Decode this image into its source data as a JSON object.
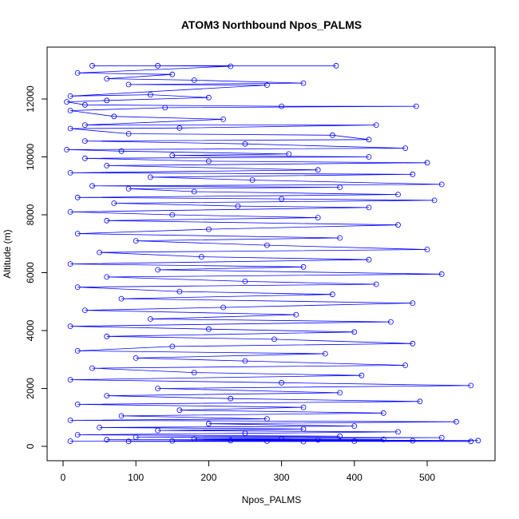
{
  "chart_data": {
    "type": "scatter",
    "title": "ATOM3 Northbound Npos_PALMS",
    "xlabel": "Npos_PALMS",
    "ylabel": "Altitude (m)",
    "xlim": [
      0,
      570
    ],
    "ylim": [
      0,
      13200
    ],
    "x_ticks": [
      0,
      100,
      200,
      300,
      400,
      500
    ],
    "y_ticks": [
      0,
      2000,
      4000,
      6000,
      8000,
      10000,
      12000
    ],
    "grid": false,
    "legend": "none",
    "series_color": "#0000ff",
    "marker": "open-circle",
    "connected": true,
    "series": [
      {
        "values": [
          [
            40,
            13150
          ],
          [
            375,
            13150
          ],
          [
            130,
            13150
          ],
          [
            230,
            13130
          ],
          [
            20,
            12900
          ],
          [
            150,
            12850
          ],
          [
            60,
            12700
          ],
          [
            180,
            12650
          ],
          [
            330,
            12550
          ],
          [
            90,
            12500
          ],
          [
            280,
            12480
          ],
          [
            10,
            12100
          ],
          [
            120,
            12150
          ],
          [
            200,
            12050
          ],
          [
            60,
            11950
          ],
          [
            5,
            11900
          ],
          [
            30,
            11800
          ],
          [
            300,
            11750
          ],
          [
            485,
            11750
          ],
          [
            140,
            11700
          ],
          [
            10,
            11600
          ],
          [
            70,
            11400
          ],
          [
            220,
            11300
          ],
          [
            30,
            11100
          ],
          [
            430,
            11100
          ],
          [
            160,
            11000
          ],
          [
            10,
            10980
          ],
          [
            90,
            10800
          ],
          [
            370,
            10750
          ],
          [
            420,
            10600
          ],
          [
            30,
            10550
          ],
          [
            250,
            10450
          ],
          [
            470,
            10300
          ],
          [
            5,
            10250
          ],
          [
            80,
            10200
          ],
          [
            310,
            10100
          ],
          [
            150,
            10050
          ],
          [
            420,
            10000
          ],
          [
            30,
            9950
          ],
          [
            200,
            9850
          ],
          [
            500,
            9800
          ],
          [
            60,
            9700
          ],
          [
            350,
            9550
          ],
          [
            10,
            9450
          ],
          [
            480,
            9400
          ],
          [
            120,
            9300
          ],
          [
            260,
            9200
          ],
          [
            520,
            9050
          ],
          [
            40,
            9000
          ],
          [
            380,
            8950
          ],
          [
            90,
            8900
          ],
          [
            180,
            8800
          ],
          [
            460,
            8700
          ],
          [
            20,
            8600
          ],
          [
            300,
            8550
          ],
          [
            510,
            8500
          ],
          [
            70,
            8400
          ],
          [
            240,
            8300
          ],
          [
            420,
            8250
          ],
          [
            10,
            8100
          ],
          [
            150,
            8000
          ],
          [
            350,
            7900
          ],
          [
            60,
            7800
          ],
          [
            460,
            7650
          ],
          [
            200,
            7500
          ],
          [
            20,
            7350
          ],
          [
            380,
            7200
          ],
          [
            100,
            7100
          ],
          [
            280,
            6950
          ],
          [
            500,
            6800
          ],
          [
            50,
            6700
          ],
          [
            190,
            6550
          ],
          [
            420,
            6450
          ],
          [
            10,
            6300
          ],
          [
            330,
            6200
          ],
          [
            130,
            6100
          ],
          [
            520,
            5950
          ],
          [
            60,
            5850
          ],
          [
            250,
            5700
          ],
          [
            430,
            5600
          ],
          [
            20,
            5500
          ],
          [
            160,
            5350
          ],
          [
            370,
            5250
          ],
          [
            80,
            5100
          ],
          [
            480,
            4950
          ],
          [
            220,
            4800
          ],
          [
            30,
            4700
          ],
          [
            320,
            4550
          ],
          [
            120,
            4400
          ],
          [
            450,
            4300
          ],
          [
            10,
            4150
          ],
          [
            200,
            4050
          ],
          [
            400,
            3950
          ],
          [
            60,
            3800
          ],
          [
            290,
            3700
          ],
          [
            480,
            3550
          ],
          [
            150,
            3450
          ],
          [
            20,
            3300
          ],
          [
            360,
            3200
          ],
          [
            100,
            3050
          ],
          [
            250,
            2950
          ],
          [
            470,
            2800
          ],
          [
            40,
            2700
          ],
          [
            180,
            2550
          ],
          [
            410,
            2450
          ],
          [
            10,
            2300
          ],
          [
            300,
            2200
          ],
          [
            560,
            2100
          ],
          [
            130,
            2000
          ],
          [
            380,
            1850
          ],
          [
            60,
            1750
          ],
          [
            230,
            1650
          ],
          [
            490,
            1550
          ],
          [
            20,
            1450
          ],
          [
            330,
            1350
          ],
          [
            160,
            1250
          ],
          [
            440,
            1150
          ],
          [
            80,
            1050
          ],
          [
            280,
            950
          ],
          [
            10,
            900
          ],
          [
            540,
            850
          ],
          [
            200,
            780
          ],
          [
            400,
            700
          ],
          [
            50,
            650
          ],
          [
            330,
            600
          ],
          [
            130,
            550
          ],
          [
            460,
            500
          ],
          [
            250,
            450
          ],
          [
            20,
            400
          ],
          [
            380,
            350
          ],
          [
            100,
            320
          ],
          [
            520,
            300
          ],
          [
            300,
            280
          ],
          [
            180,
            260
          ],
          [
            440,
            240
          ],
          [
            60,
            230
          ],
          [
            350,
            220
          ],
          [
            570,
            200
          ],
          [
            230,
            200
          ],
          [
            150,
            190
          ],
          [
            480,
            190
          ],
          [
            10,
            180
          ],
          [
            400,
            180
          ],
          [
            280,
            180
          ],
          [
            560,
            170
          ],
          [
            90,
            170
          ],
          [
            330,
            165
          ]
        ]
      }
    ]
  }
}
